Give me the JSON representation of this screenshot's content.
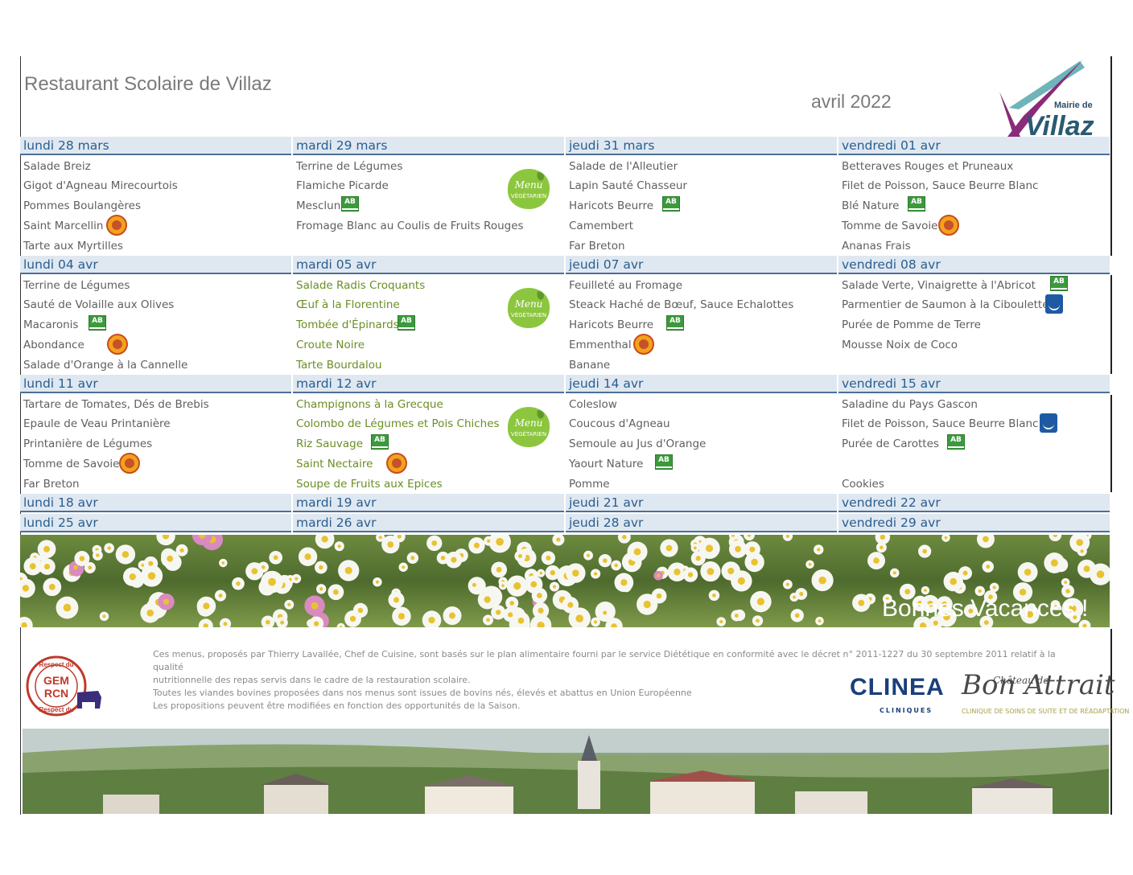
{
  "header": {
    "title": "Restaurant Scolaire de Villaz",
    "month": "avril 2022",
    "logo_line1": "Mairie de",
    "logo_line2": "Villaz"
  },
  "weeks": [
    {
      "days": [
        {
          "date": "lundi 28 mars",
          "items": [
            "Salade Breiz",
            "Gigot d'Agneau Mirecourtois",
            "Pommes Boulangères",
            "Saint Marcellin",
            "Tarte aux Myrtilles"
          ]
        },
        {
          "date": "mardi 29 mars",
          "items": [
            "Terrine de Légumes",
            "Flamiche Picarde",
            "Mesclun",
            "Fromage Blanc au Coulis de Fruits Rouges"
          ]
        },
        {
          "date": "jeudi 31 mars",
          "items": [
            "Salade de l'Alleutier",
            "Lapin Sauté Chasseur",
            " Haricots Beurre",
            "Camembert",
            "Far Breton"
          ]
        },
        {
          "date": "vendredi 01 avr",
          "items": [
            "Betteraves Rouges et Pruneaux",
            "Filet de Poisson, Sauce Beurre Blanc",
            "Blé Nature",
            "Tomme de Savoie",
            "Ananas Frais"
          ]
        }
      ]
    },
    {
      "days": [
        {
          "date": "lundi 04 avr",
          "items": [
            "Terrine de Légumes",
            "Sauté de Volaille aux Olives",
            "Macaronis",
            "Abondance",
            "Salade d'Orange à la Cannelle"
          ]
        },
        {
          "date": "mardi 05 avr",
          "items": [
            "Salade Radis Croquants",
            "Œuf à la Florentine",
            "Tombée d'Épinards",
            "Croute Noire",
            "Tarte Bourdalou"
          ]
        },
        {
          "date": "jeudi 07 avr",
          "items": [
            "Feuilleté au Fromage",
            "Steack Haché de Bœuf, Sauce Echalottes",
            " Haricots Beurre",
            "Emmenthal",
            "Banane"
          ]
        },
        {
          "date": "vendredi 08 avr",
          "items": [
            "Salade Verte, Vinaigrette à l'Abricot",
            "Parmentier de Saumon à la Ciboulette",
            "Purée de Pomme de Terre",
            "Mousse Noix de Coco"
          ]
        }
      ]
    },
    {
      "days": [
        {
          "date": "lundi 11 avr",
          "items": [
            "Tartare de Tomates, Dés de Brebis",
            "Epaule de Veau Printanière",
            "Printanière de Légumes",
            "Tomme de Savoie",
            "Far Breton"
          ]
        },
        {
          "date": "mardi 12 avr",
          "items": [
            "Champignons à la Grecque",
            "Colombo de Légumes et Pois Chiches",
            "Riz Sauvage",
            "Saint Nectaire",
            "Soupe de Fruits aux Epices"
          ]
        },
        {
          "date": "jeudi 14 avr",
          "items": [
            "Coleslow",
            "Coucous d'Agneau",
            "Semoule au Jus d'Orange",
            "Yaourt Nature",
            "Pomme"
          ]
        },
        {
          "date": "vendredi 15 avr",
          "items": [
            "Saladine du Pays Gascon",
            "Filet de Poisson, Sauce Beurre Blanc",
            "Purée de Carottes",
            "",
            "Cookies"
          ]
        }
      ]
    },
    {
      "days": [
        {
          "date": "lundi 18 avr"
        },
        {
          "date": "mardi 19 avr"
        },
        {
          "date": "jeudi 21 avr"
        },
        {
          "date": "vendredi 22 avr"
        }
      ]
    },
    {
      "days": [
        {
          "date": "lundi 25 avr"
        },
        {
          "date": "mardi 26 avr"
        },
        {
          "date": "jeudi 28 avr"
        },
        {
          "date": "vendredi 29 avr"
        }
      ]
    }
  ],
  "badges": {
    "veg_line1": "Menu",
    "veg_line2": "VÉGÉTARIEN",
    "ab": "AB",
    "msc": "MSC"
  },
  "banner": {
    "text": "Bonnes Vacances !"
  },
  "footer": {
    "lines": [
      "Ces menus, proposés par Thierry Lavallée, Chef de Cuisine, sont basés sur le plan alimentaire fourni par le service Diététique en conformité avec le décret n° 2011-1227 du 30 septembre 2011 relatif à la qualité",
      "nutritionnelle des repas servis dans le cadre de la restauration scolaire.",
      "Toutes les viandes bovines proposées dans nos menus sont issues de bovins nés, élevés et abattus en Union Européenne",
      "Les propositions peuvent être modifiées en fonction des opportunités de la Saison."
    ],
    "gem_top": "Respect du",
    "gem_mid1": "GEM",
    "gem_mid2": "RCN",
    "gem_bottom": "Respect du",
    "clinea": "CLINEA",
    "clinea_sub": "CLINIQUES",
    "chateau_small": "Château de",
    "chateau_main": "Bon Attrait",
    "chateau_sub": "CLINIQUE DE SOINS DE SUITE ET DE RÉADAPTATION"
  },
  "colors": {
    "header_bg": "#dfe8f1",
    "header_text": "#2a5d8f",
    "veg_text": "#6b8e23",
    "body_text": "#5f5f5f"
  }
}
